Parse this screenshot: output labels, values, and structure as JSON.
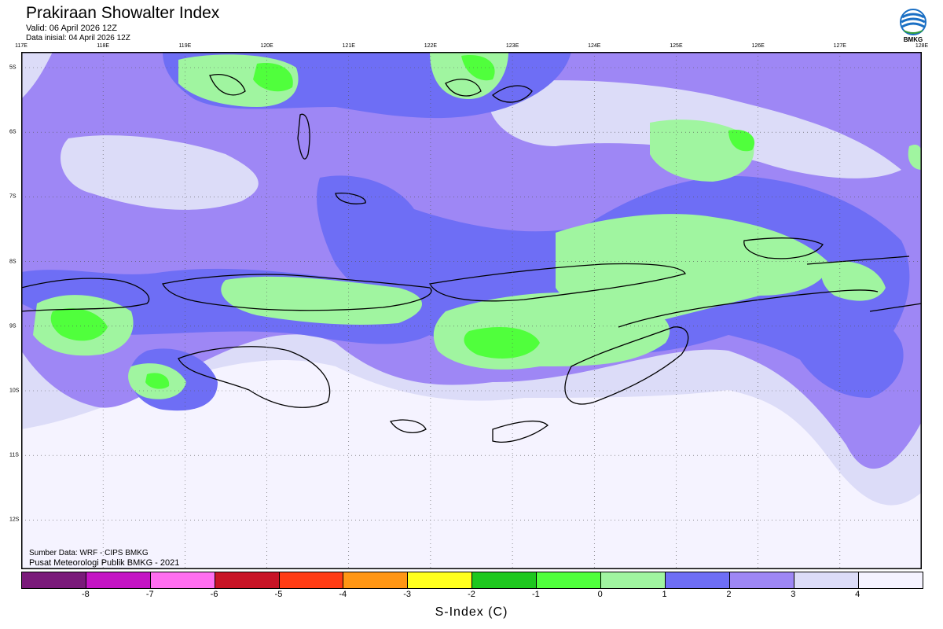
{
  "title": "Prakiraan Showalter Index",
  "valid": "Valid: 06 April 2026 12Z",
  "initial": "Data inisial: 04 April 2026 12Z",
  "logo_text": "BMKG",
  "credit_source": "Sumber Data: WRF - CIPS BMKG",
  "credit_org": "Pusat Meteorologi Publik BMKG - 2021",
  "lon_labels": [
    "117E",
    "118E",
    "119E",
    "120E",
    "121E",
    "122E",
    "123E",
    "124E",
    "125E",
    "126E",
    "127E",
    "128E"
  ],
  "lat_labels": [
    "5S",
    "6S",
    "7S",
    "8S",
    "9S",
    "10S",
    "11S",
    "12S"
  ],
  "colorbar": {
    "title": "S-Index (C)",
    "labels": [
      "-8",
      "-7",
      "-6",
      "-5",
      "-4",
      "-3",
      "-2",
      "-1",
      "0",
      "1",
      "2",
      "3",
      "4"
    ],
    "colors": [
      "#7a1a7a",
      "#c414c4",
      "#ff6ef0",
      "#c81426",
      "#ff3c14",
      "#ff9614",
      "#ffff1e",
      "#1ec81e",
      "#50ff3c",
      "#a0f5a0",
      "#6e6ef5",
      "#9e87f5",
      "#dcdcf8",
      "#f5f3ff"
    ]
  },
  "colors": {
    "lightest": "#f5f3ff",
    "light": "#dcdcf8",
    "lavender": "#9e87f5",
    "blue": "#6e6ef5",
    "pale_green": "#a0f5a0",
    "green": "#50ff3c"
  }
}
